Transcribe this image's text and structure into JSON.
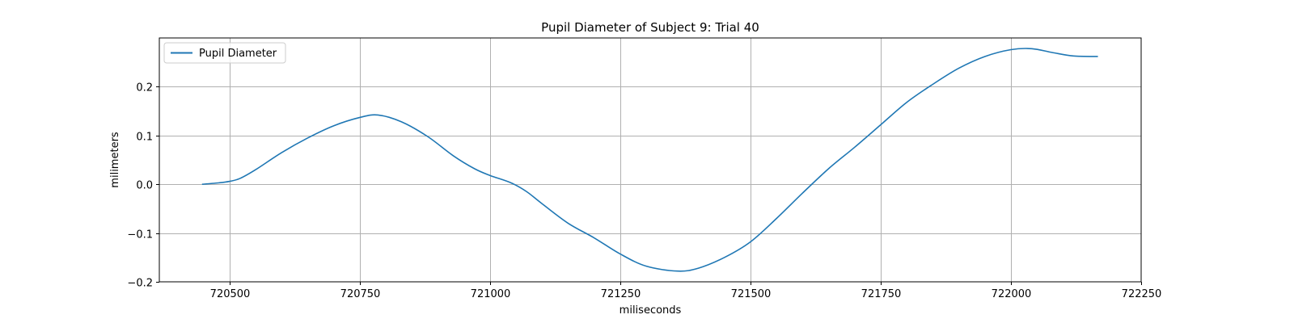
{
  "chart_data": {
    "type": "line",
    "title": "Pupil Diameter of Subject 9: Trial 40",
    "xlabel": "miliseconds",
    "ylabel": "milimeters",
    "xlim": [
      720365,
      722250
    ],
    "ylim": [
      -0.2,
      0.3
    ],
    "xticks": [
      720500,
      720750,
      721000,
      721250,
      721500,
      721750,
      722000,
      722250
    ],
    "xtick_labels": [
      "720500",
      "720750",
      "721000",
      "721250",
      "721500",
      "721750",
      "722000",
      "722250"
    ],
    "yticks": [
      -0.2,
      -0.1,
      0.0,
      0.1,
      0.2
    ],
    "ytick_labels": [
      "−0.2",
      "−0.1",
      "0.0",
      "0.1",
      "0.2"
    ],
    "grid": true,
    "legend_position": "top-left",
    "series": [
      {
        "name": "Pupil Diameter",
        "color": "#1f77b4",
        "x": [
          720447,
          720480,
          720500,
          720520,
          720550,
          720600,
          720650,
          720700,
          720750,
          720785,
          720830,
          720880,
          720930,
          720970,
          721000,
          721040,
          721070,
          721100,
          721150,
          721200,
          721250,
          721300,
          721360,
          721400,
          721450,
          721500,
          721550,
          721600,
          721650,
          721700,
          721750,
          721800,
          721850,
          721900,
          721950,
          722000,
          722040,
          722080,
          722120,
          722167
        ],
        "y": [
          0.0,
          0.003,
          0.006,
          0.012,
          0.03,
          0.065,
          0.095,
          0.12,
          0.137,
          0.142,
          0.128,
          0.098,
          0.058,
          0.032,
          0.018,
          0.003,
          -0.015,
          -0.04,
          -0.08,
          -0.11,
          -0.143,
          -0.168,
          -0.178,
          -0.172,
          -0.15,
          -0.118,
          -0.07,
          -0.018,
          0.032,
          0.076,
          0.122,
          0.168,
          0.205,
          0.238,
          0.262,
          0.276,
          0.278,
          0.27,
          0.263,
          0.262
        ]
      }
    ]
  }
}
